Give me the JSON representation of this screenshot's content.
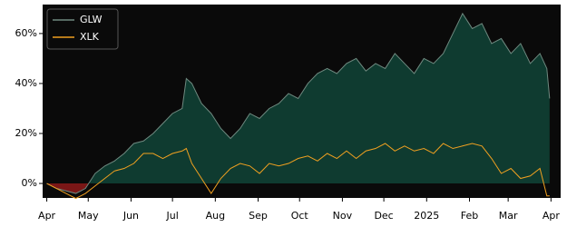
{
  "chart_data": {
    "type": "line",
    "x": [
      0,
      7,
      14,
      21,
      28,
      35,
      42,
      49,
      56,
      63,
      70,
      77,
      84,
      91,
      98,
      101,
      105,
      112,
      119,
      126,
      133,
      140,
      147,
      154,
      161,
      168,
      175,
      182,
      189,
      196,
      203,
      210,
      217,
      224,
      231,
      238,
      245,
      252,
      259,
      266,
      273,
      280,
      287,
      294,
      301,
      308,
      315,
      322,
      329,
      336,
      343,
      350,
      357,
      362,
      364
    ],
    "series": [
      {
        "name": "GLW",
        "color": "#6f8a80",
        "fill_above": "#0f3b30",
        "fill_below": "#7a1616",
        "values": [
          0,
          -2,
          -3,
          -4,
          -2,
          4,
          7,
          9,
          12,
          16,
          17,
          20,
          24,
          28,
          30,
          42,
          40,
          32,
          28,
          22,
          18,
          22,
          28,
          26,
          30,
          32,
          36,
          34,
          40,
          44,
          46,
          44,
          48,
          50,
          45,
          48,
          46,
          52,
          48,
          44,
          50,
          48,
          52,
          60,
          68,
          62,
          64,
          56,
          58,
          52,
          56,
          48,
          52,
          46,
          34
        ]
      },
      {
        "name": "XLK",
        "color": "#f0a020",
        "values": [
          0,
          -2,
          -4,
          -6,
          -4,
          -1,
          2,
          5,
          6,
          8,
          12,
          12,
          10,
          12,
          13,
          14,
          8,
          2,
          -4,
          2,
          6,
          8,
          7,
          4,
          8,
          7,
          8,
          10,
          11,
          9,
          12,
          10,
          13,
          10,
          13,
          14,
          16,
          13,
          15,
          13,
          14,
          12,
          16,
          14,
          15,
          16,
          15,
          10,
          4,
          6,
          2,
          3,
          6,
          -5,
          -5
        ]
      }
    ],
    "xlim": [
      -3,
      372
    ],
    "xticks": [
      {
        "value": 0,
        "label": "Apr"
      },
      {
        "value": 30,
        "label": "May"
      },
      {
        "value": 61,
        "label": "Jun"
      },
      {
        "value": 91,
        "label": "Jul"
      },
      {
        "value": 122,
        "label": "Aug"
      },
      {
        "value": 153,
        "label": "Sep"
      },
      {
        "value": 183,
        "label": "Oct"
      },
      {
        "value": 214,
        "label": "Nov"
      },
      {
        "value": 244,
        "label": "Dec"
      },
      {
        "value": 275,
        "label": "2025"
      },
      {
        "value": 306,
        "label": "Feb"
      },
      {
        "value": 334,
        "label": "Mar"
      },
      {
        "value": 365,
        "label": "Apr"
      }
    ],
    "ylim": [
      -5.8,
      71.6
    ],
    "yticks": [
      {
        "value": 0,
        "label": "0%"
      },
      {
        "value": 20,
        "label": "20%"
      },
      {
        "value": 40,
        "label": "40%"
      },
      {
        "value": 60,
        "label": "60%"
      }
    ],
    "grid": false,
    "legend": "upper left",
    "background": "#0a0a0a"
  }
}
